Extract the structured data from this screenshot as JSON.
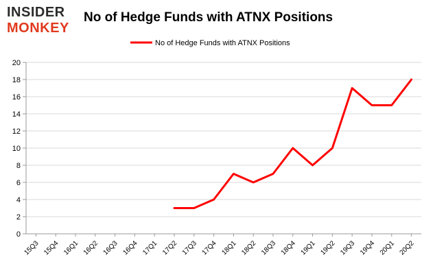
{
  "logo": {
    "line1": "INSIDER",
    "line2": "MONKEY"
  },
  "chart_data": {
    "type": "line",
    "title": "No of Hedge Funds with ATNX Positions",
    "xlabel": "",
    "ylabel": "",
    "legend_position": "top",
    "grid": "horizontal",
    "ylim": [
      0,
      20
    ],
    "yticks": [
      0,
      2,
      4,
      6,
      8,
      10,
      12,
      14,
      16,
      18,
      20
    ],
    "categories": [
      "15Q3",
      "15Q4",
      "16Q1",
      "16Q2",
      "16Q3",
      "16Q4",
      "17Q1",
      "17Q2",
      "17Q3",
      "17Q4",
      "18Q1",
      "18Q2",
      "18Q3",
      "18Q4",
      "19Q1",
      "19Q2",
      "19Q3",
      "19Q4",
      "20Q1",
      "20Q2"
    ],
    "series": [
      {
        "name": "No of Hedge Funds with ATNX Positions",
        "color": "#ff0000",
        "values": [
          null,
          null,
          null,
          null,
          null,
          null,
          null,
          3,
          3,
          4,
          7,
          6,
          7,
          10,
          8,
          10,
          17,
          15,
          15,
          18
        ]
      }
    ]
  }
}
